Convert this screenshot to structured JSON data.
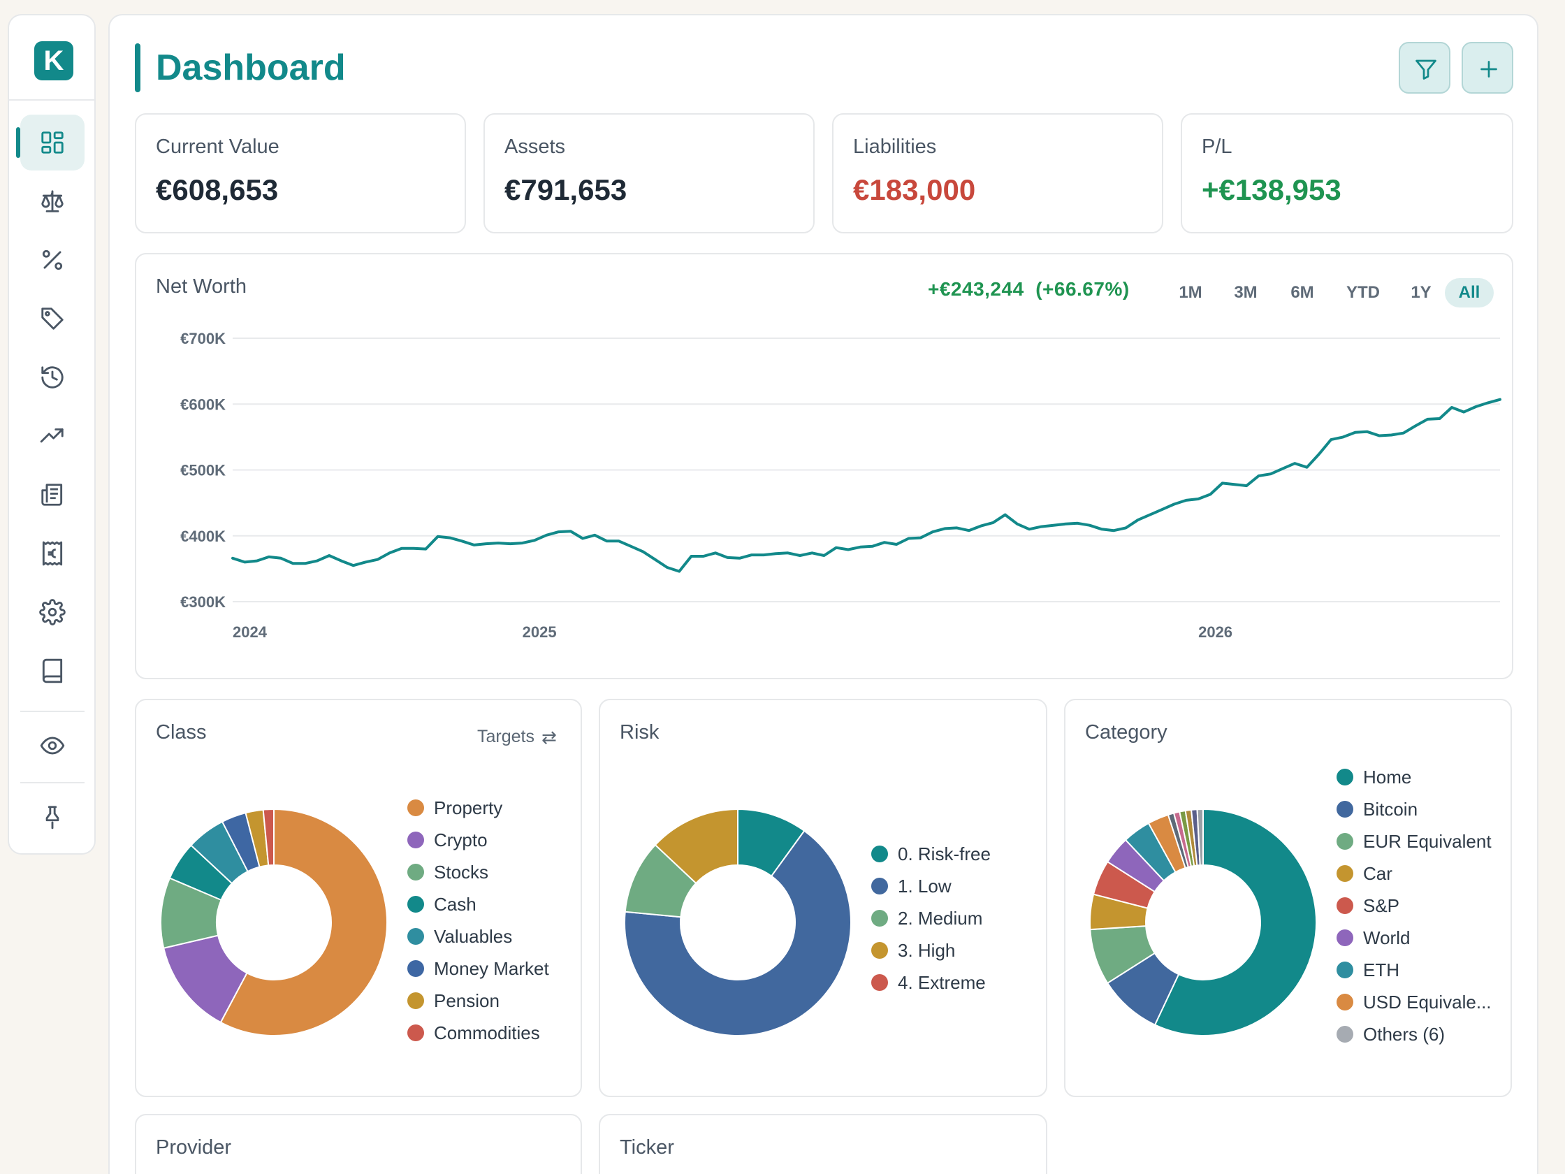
{
  "app": {
    "logo_letter": "K",
    "page_title": "Dashboard",
    "accent_color": "#12898a"
  },
  "sidebar": {
    "items": [
      {
        "icon": "dashboard-icon",
        "active": true
      },
      {
        "icon": "scale-icon"
      },
      {
        "icon": "percent-icon"
      },
      {
        "icon": "tag-icon"
      },
      {
        "icon": "history-icon"
      },
      {
        "icon": "trending-up-icon"
      },
      {
        "icon": "newspaper-icon"
      },
      {
        "icon": "euro-receipt-icon"
      },
      {
        "icon": "gear-icon"
      },
      {
        "icon": "book-icon"
      },
      {
        "icon": "eye-icon"
      },
      {
        "icon": "pin-icon"
      }
    ]
  },
  "header": {
    "buttons": [
      {
        "icon": "filter-icon"
      },
      {
        "icon": "plus-icon"
      }
    ]
  },
  "kpis": [
    {
      "label": "Current Value",
      "value": "€608,653",
      "color": "#1f2a36"
    },
    {
      "label": "Assets",
      "value": "€791,653",
      "color": "#1f2a36"
    },
    {
      "label": "Liabilities",
      "value": "€183,000",
      "color": "#c8483c"
    },
    {
      "label": "P/L",
      "value": "+€138,953",
      "color": "#1f9451"
    }
  ],
  "net_worth": {
    "title": "Net Worth",
    "change": "+€243,244",
    "change_pct": "(+66.67%)",
    "change_color": "#1f9451",
    "ranges": [
      "1M",
      "3M",
      "6M",
      "YTD",
      "1Y",
      "All"
    ],
    "active_range": "All"
  },
  "class_card": {
    "title": "Class",
    "targets_label": "Targets",
    "targets_icon": "swap-arrows-icon"
  },
  "risk_card": {
    "title": "Risk"
  },
  "category_card": {
    "title": "Category"
  },
  "provider_card": {
    "title": "Provider"
  },
  "ticker_card": {
    "title": "Ticker"
  },
  "chart_data": [
    {
      "type": "line",
      "title": "Net Worth",
      "ylim": [
        300000,
        700000
      ],
      "yticks": [
        "€700K",
        "€600K",
        "€500K",
        "€400K",
        "€300K"
      ],
      "xticks": [
        "2024",
        "2025",
        "2026"
      ],
      "xtick_months": [
        0,
        12,
        40
      ],
      "grid": true,
      "color": "#12898a",
      "series": [
        {
          "month_step": 0.5,
          "values": [
            366000,
            360000,
            362000,
            368000,
            366000,
            358000,
            358000,
            362000,
            370000,
            362000,
            355000,
            360000,
            364000,
            374000,
            381000,
            381000,
            380000,
            399000,
            397000,
            392000,
            386000,
            388000,
            389000,
            388000,
            389000,
            393000,
            401000,
            406000,
            407000,
            396000,
            401000,
            392000,
            392000,
            384000,
            376000,
            364000,
            352000,
            346000,
            369000,
            369000,
            374000,
            367000,
            366000,
            371000,
            371000,
            373000,
            374000,
            370000,
            374000,
            370000,
            382000,
            379000,
            383000,
            384000,
            390000,
            387000,
            396000,
            397000,
            406000,
            411000,
            412000,
            408000,
            415000,
            420000,
            432000,
            418000,
            410000,
            414000,
            416000,
            418000,
            419000,
            416000,
            410000,
            408000,
            412000,
            424000,
            432000,
            440000,
            448000,
            454000,
            456000,
            463000,
            480000,
            478000,
            476000,
            491000,
            494000,
            502000,
            510000,
            504000,
            524000,
            546000,
            550000,
            557000,
            558000,
            552000,
            553000,
            556000,
            567000,
            577000,
            578000,
            595000,
            588000,
            596000,
            602000,
            607000
          ]
        }
      ]
    },
    {
      "type": "pie",
      "title": "Class",
      "donut": true,
      "labels": [
        "Property",
        "Crypto",
        "Stocks",
        "Cash",
        "Valuables",
        "Money Market",
        "Pension",
        "Commodities"
      ],
      "values": [
        57.5,
        13.5,
        10.0,
        5.5,
        5.5,
        3.5,
        2.5,
        1.5
      ],
      "colors": [
        "#d98a42",
        "#8e66bb",
        "#6fab82",
        "#12898a",
        "#2f8ea0",
        "#3e67a3",
        "#c4952f",
        "#cc594d"
      ]
    },
    {
      "type": "pie",
      "title": "Risk",
      "donut": true,
      "labels": [
        "0. Risk-free",
        "1. Low",
        "2. Medium",
        "3. High",
        "4. Extreme"
      ],
      "values": [
        10.0,
        66.5,
        10.5,
        13.0,
        0.0
      ],
      "colors": [
        "#12898a",
        "#41689e",
        "#6fab82",
        "#c4952f",
        "#cc594d"
      ]
    },
    {
      "type": "pie",
      "title": "Category",
      "donut": true,
      "labels": [
        "Home",
        "Bitcoin",
        "EUR Equivalent",
        "Car",
        "S&P",
        "World",
        "ETH",
        "USD Equivale...",
        "Others (6)"
      ],
      "values": [
        57.0,
        9.0,
        8.0,
        5.0,
        5.0,
        4.0,
        4.0,
        3.0,
        5.0
      ],
      "colors": [
        "#12898a",
        "#41689e",
        "#6fab82",
        "#c4952f",
        "#cc594d",
        "#8e66bb",
        "#2f8ea0",
        "#d98a42",
        "#a6abb2"
      ],
      "others_colors": [
        "#5d6a78",
        "#c76a8e",
        "#7a9a45",
        "#b08a3a",
        "#5a5f8a",
        "#9aa0a6"
      ]
    }
  ]
}
